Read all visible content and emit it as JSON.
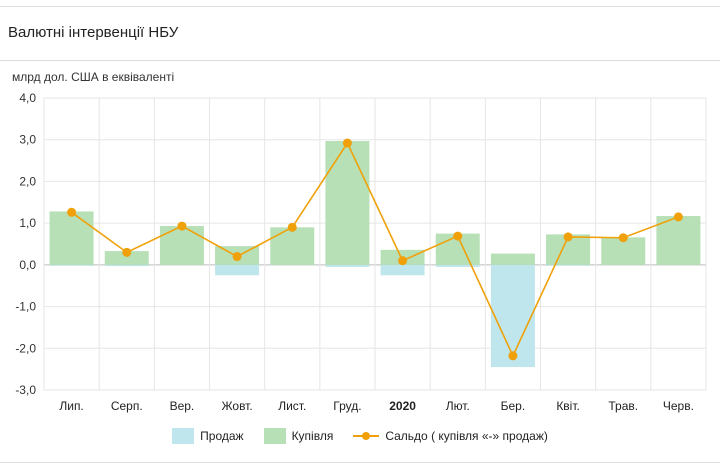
{
  "header": {
    "title": "Валютні інтервенції НБУ"
  },
  "chart_data": {
    "type": "bar",
    "units_label": "млрд дол. США в еквіваленті",
    "categories": [
      "Лип.",
      "Серп.",
      "Вер.",
      "Жовт.",
      "Лист.",
      "Груд.",
      "2020",
      "Лют.",
      "Бер.",
      "Квіт.",
      "Трав.",
      "Черв."
    ],
    "bold_categories": [
      "2020"
    ],
    "yticks": [
      "4,0",
      "3,0",
      "2,0",
      "1,0",
      "0,0",
      "-1,0",
      "-2,0",
      "-3,0"
    ],
    "ylim": [
      -3,
      4
    ],
    "grid": true,
    "legend_position": "bottom",
    "series": [
      {
        "name": "Продаж",
        "type": "bar",
        "color": "#bfe6ec",
        "values": [
          -0.02,
          -0.03,
          0.0,
          -0.25,
          0.0,
          -0.05,
          -0.25,
          -0.05,
          -2.45,
          -0.02,
          0.0,
          0.0
        ]
      },
      {
        "name": "Купівля",
        "type": "bar",
        "color": "#b7e0b7",
        "values": [
          1.28,
          0.33,
          0.93,
          0.45,
          0.9,
          2.97,
          0.36,
          0.75,
          0.27,
          0.73,
          0.66,
          1.17
        ]
      },
      {
        "name": "Сальдо ( купівля «-» продаж)",
        "type": "line",
        "color": "#f0a10a",
        "values": [
          1.26,
          0.3,
          0.93,
          0.2,
          0.9,
          2.92,
          0.1,
          0.69,
          -2.18,
          0.67,
          0.65,
          1.15
        ]
      }
    ]
  }
}
